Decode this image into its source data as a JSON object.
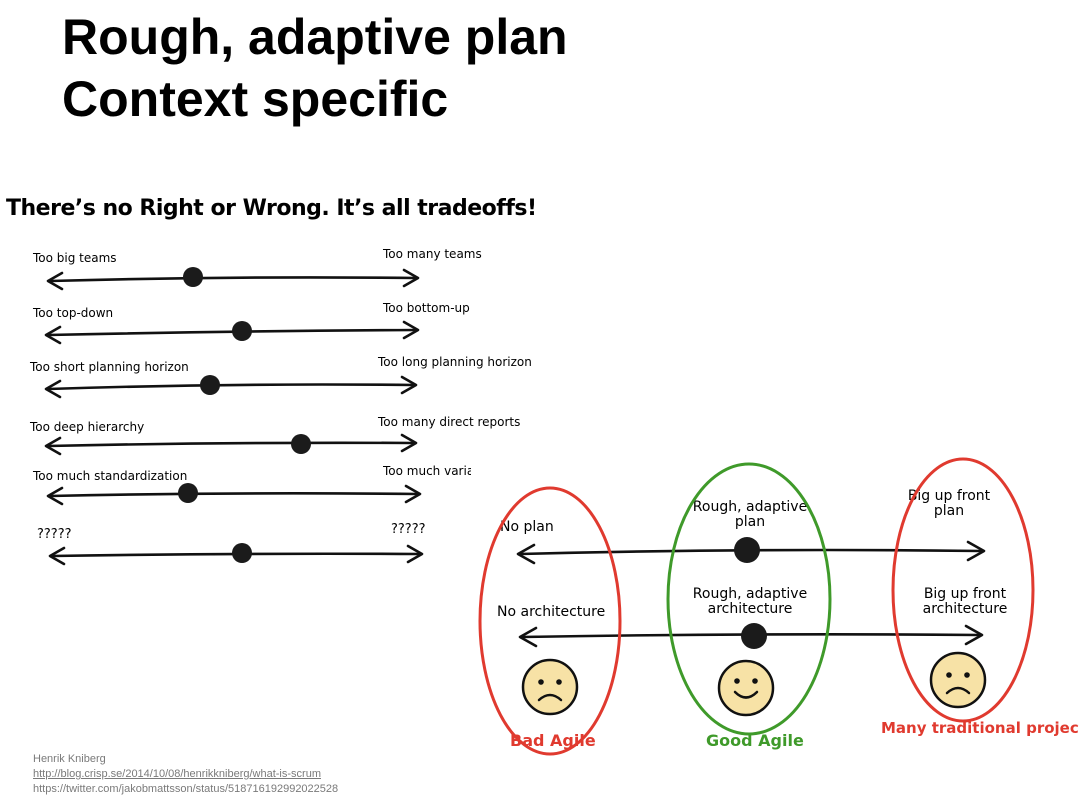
{
  "title": {
    "line1": "Rough, adaptive plan",
    "line2": "Context specific"
  },
  "tradeoffs": {
    "heading": "There’s no Right or Wrong. It’s all tradeoffs!",
    "rows": [
      {
        "left": "Too big teams",
        "right": "Too many teams"
      },
      {
        "left": "Too top-down",
        "right": "Too bottom-up"
      },
      {
        "left": "Too short planning horizon",
        "right": "Too long planning horizon"
      },
      {
        "left": "Too deep hierarchy",
        "right": "Too many direct reports"
      },
      {
        "left": "Too much standardization",
        "right": "Too much variatic"
      },
      {
        "left": "?????",
        "right": "?????"
      }
    ]
  },
  "agile": {
    "rows": [
      {
        "left": "No plan",
        "middle": "Rough, adaptive\nplan",
        "right": "Big up front\nplan"
      },
      {
        "left": "No architecture",
        "middle": "Rough, adaptive\narchitecture",
        "right": "Big up front\narchitecture"
      }
    ],
    "groups": [
      {
        "label": "Bad Agile",
        "face": "sad-face-icon",
        "ring_color": "#e03a2f"
      },
      {
        "label": "Good Agile",
        "face": "happy-face-icon",
        "ring_color": "#3f9a2a"
      },
      {
        "label": "Many traditional projects",
        "face": "sad-face-icon",
        "ring_color": "#e03a2f"
      }
    ]
  },
  "credits": {
    "author": "Henrik Kniberg",
    "link": "http://blog.crisp.se/2014/10/08/henrikkniberg/what-is-scrum",
    "twitter": "https://twitter.com/jakobmattsson/status/518716192992022528"
  }
}
